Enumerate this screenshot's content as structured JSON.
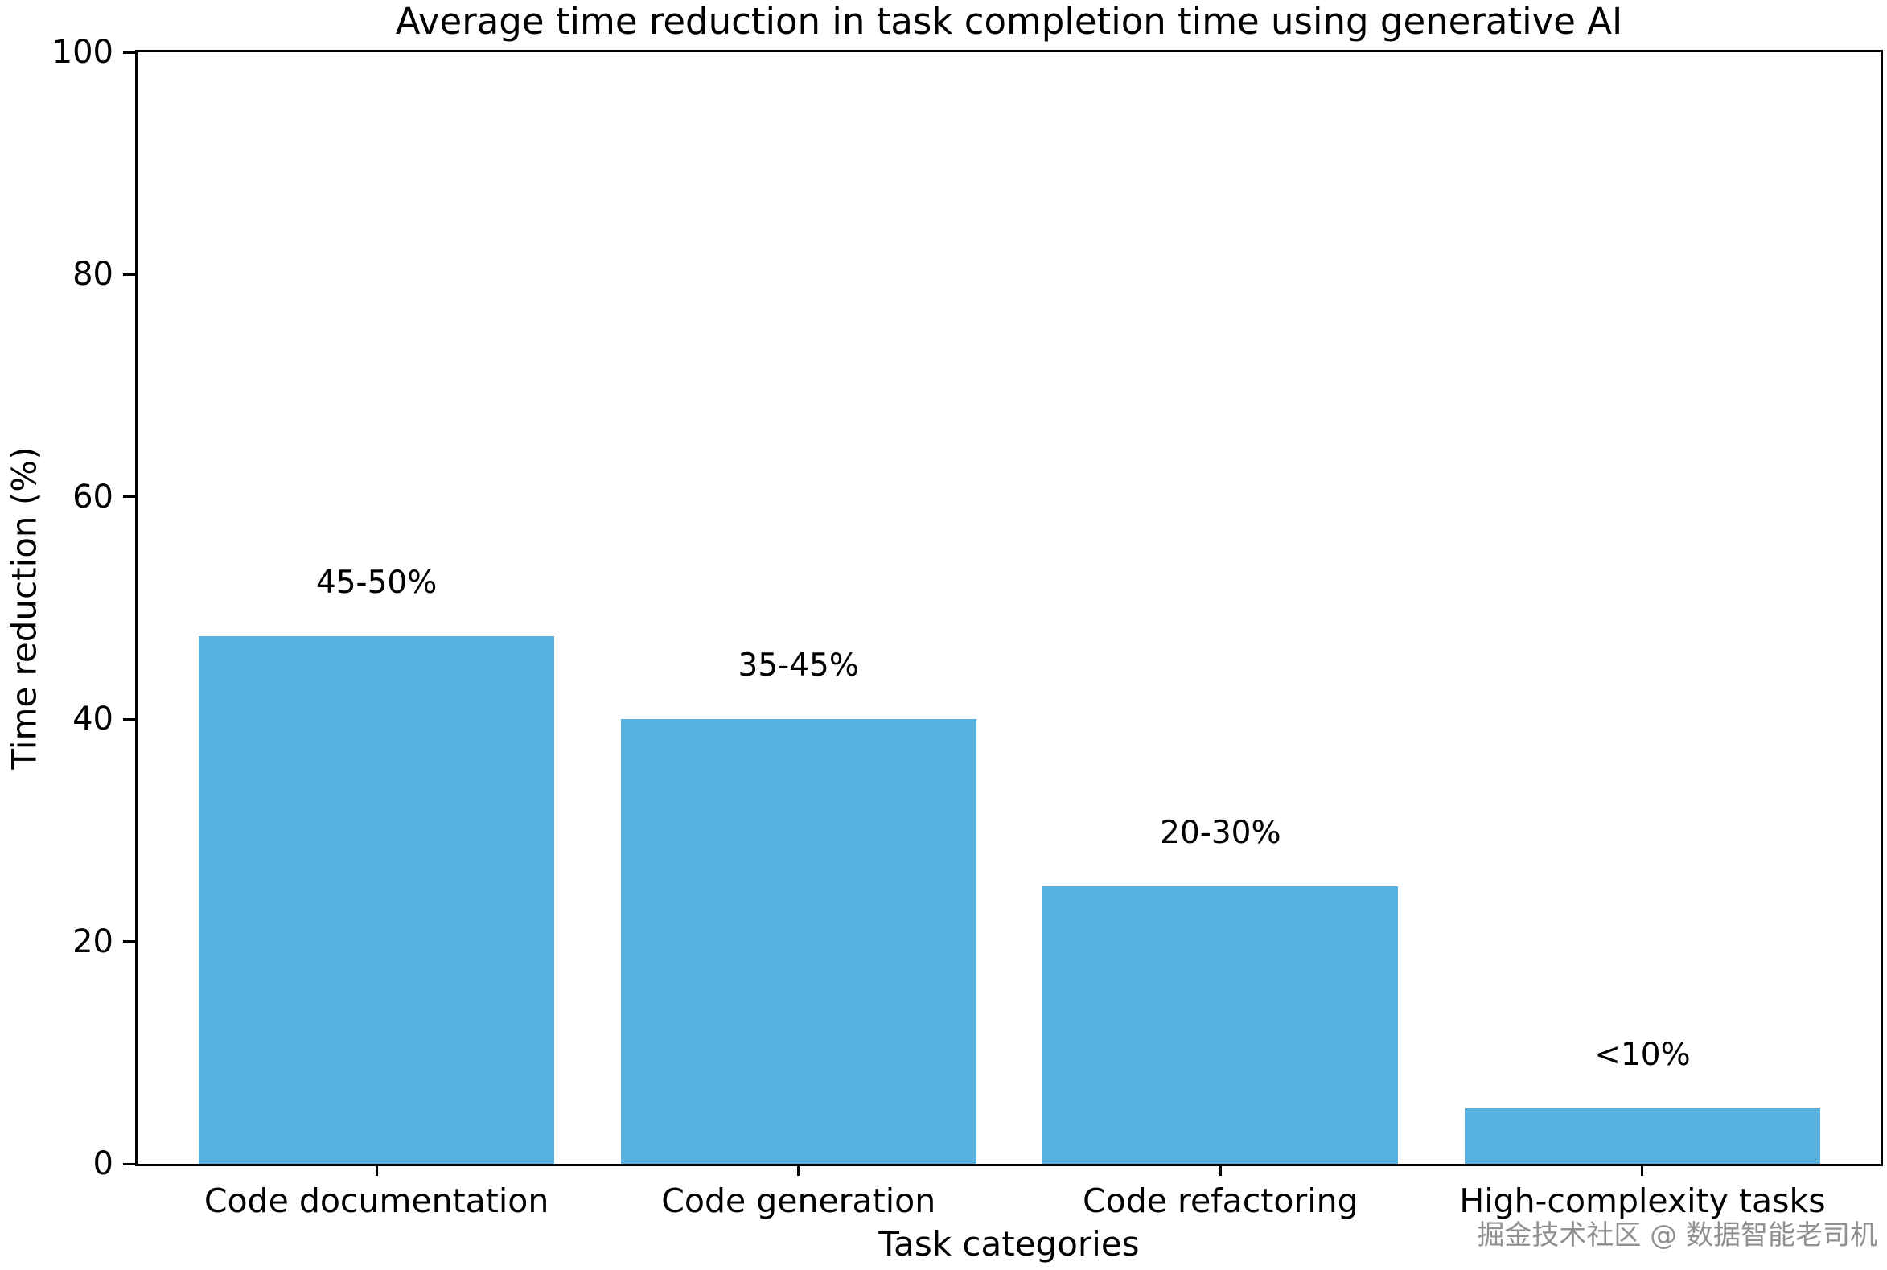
{
  "chart_data": {
    "type": "bar",
    "title": "Average time reduction in task completion time using generative AI",
    "xlabel": "Task categories",
    "ylabel": "Time reduction (%)",
    "categories": [
      "Code documentation",
      "Code generation",
      "Code refactoring",
      "High-complexity tasks"
    ],
    "values": [
      47.5,
      40,
      25,
      5
    ],
    "bar_labels": [
      "45-50%",
      "35-45%",
      "20-30%",
      "<10%"
    ],
    "ylim": [
      0,
      100
    ],
    "yticks": [
      0,
      20,
      40,
      60,
      80,
      100
    ],
    "bar_color": "#57b1e0",
    "grid": false,
    "legend": "none"
  },
  "watermark": "掘金技术社区 @ 数据智能老司机"
}
